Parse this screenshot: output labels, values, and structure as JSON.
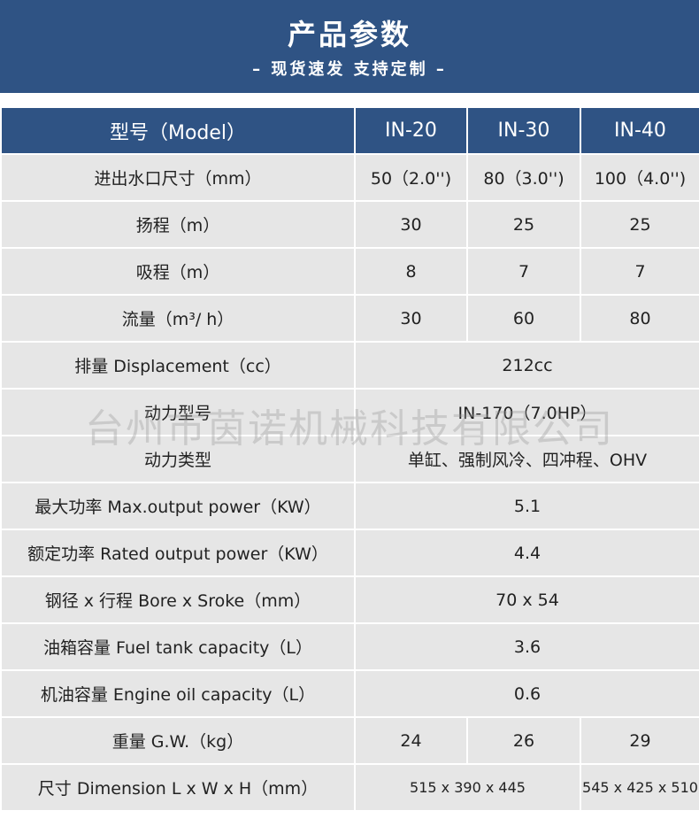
{
  "header": {
    "title": "产品参数",
    "subtitle": "– 现货速发 支持定制 –"
  },
  "table": {
    "head": [
      "型号（Model）",
      "IN-20",
      "IN-30",
      "IN-40"
    ],
    "rows": [
      [
        "进出水口尺寸（mm）",
        "50（2.0'')",
        "80（3.0'')",
        "100（4.0'')"
      ],
      [
        "扬程（m）",
        "30",
        "25",
        "25"
      ],
      [
        "吸程（m）",
        "8",
        "7",
        "7"
      ],
      [
        "流量（m³/ h）",
        "30",
        "60",
        "80"
      ],
      [
        "排量 Displacement（cc）",
        "212cc"
      ],
      [
        "动力型号",
        "IN-170（7.0HP）"
      ],
      [
        "动力类型",
        "单缸、强制风冷、四冲程、OHV"
      ],
      [
        "最大功率 Max.output power（KW）",
        "5.1"
      ],
      [
        "额定功率 Rated output power（KW）",
        "4.4"
      ],
      [
        "钢径 x 行程 Bore x Sroke（mm）",
        "70 x 54"
      ],
      [
        "油箱容量 Fuel tank capacity（L）",
        "3.6"
      ],
      [
        "机油容量 Engine oil capacity（L）",
        "0.6"
      ],
      [
        "重量 G.W.（kg）",
        "24",
        "26",
        "29"
      ],
      [
        "尺寸 Dimension L x W x H（mm）",
        "515 x 390 x 445",
        "545 x 425 x 510"
      ]
    ]
  },
  "watermark": "台州市茵诺机械科技有限公司"
}
